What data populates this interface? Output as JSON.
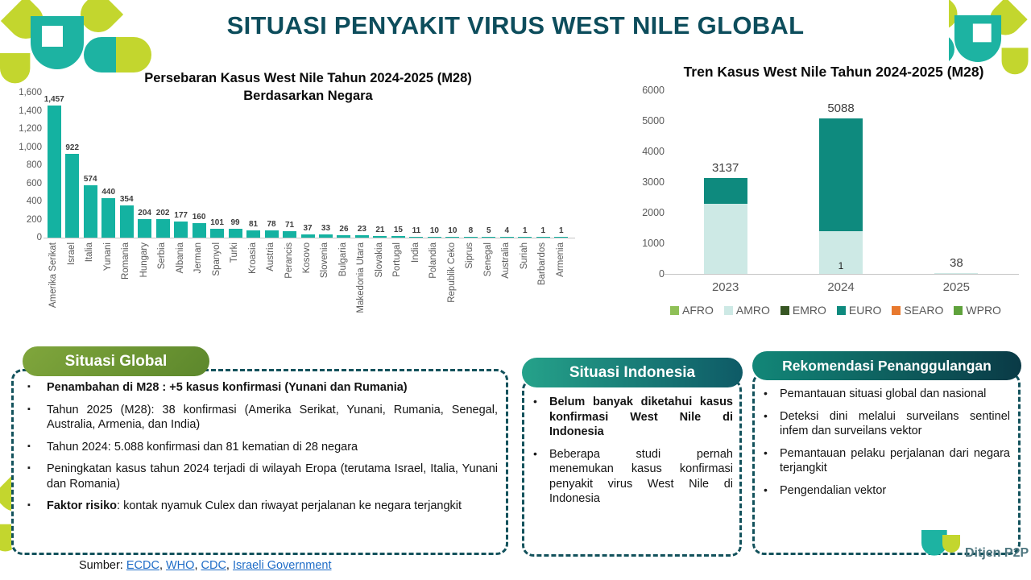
{
  "title": "SITUASI PENYAKIT VIRUS WEST NILE GLOBAL",
  "chart_data": [
    {
      "id": "country_bar",
      "type": "bar",
      "title": "Persebaran Kasus West Nile Tahun 2024-2025 (M28) Berdasarkan Negara",
      "title_lines": [
        "Persebaran Kasus West Nile Tahun 2024-2025 (M28)",
        "Berdasarkan Negara"
      ],
      "categories": [
        "Amerika Serikat",
        "Israel",
        "Italia",
        "Yunani",
        "Romania",
        "Hungary",
        "Serbia",
        "Albania",
        "Jerman",
        "Spanyol",
        "Turki",
        "Kroasia",
        "Austria",
        "Perancis",
        "Kosovo",
        "Slovenia",
        "Bulgaria",
        "Makedonia Utara",
        "Slovakia",
        "Portugal",
        "India",
        "Polandia",
        "Republik Ceko",
        "Siprus",
        "Senegal",
        "Australia",
        "Suriah",
        "Barbardos",
        "Armenia"
      ],
      "values": [
        1457,
        922,
        574,
        440,
        354,
        204,
        202,
        177,
        160,
        101,
        99,
        81,
        78,
        71,
        37,
        33,
        26,
        23,
        21,
        15,
        11,
        10,
        10,
        8,
        5,
        4,
        1,
        1,
        1
      ],
      "value_labels": [
        "1,457",
        "922",
        "574",
        "440",
        "354",
        "204",
        "202",
        "177",
        "160",
        "101",
        "99",
        "81",
        "78",
        "71",
        "37",
        "33",
        "26",
        "23",
        "21",
        "15",
        "11",
        "10",
        "10",
        "8",
        "5",
        "4",
        "1",
        "1",
        "1"
      ],
      "xlabel": "",
      "ylabel": "",
      "ylim": [
        0,
        1600
      ],
      "ytick_step": 200,
      "grid": false,
      "bar_color": "#14b2a1"
    },
    {
      "id": "trend_stacked",
      "type": "bar",
      "stacked": true,
      "title": "Tren Kasus West Nile Tahun 2024-2025 (M28)",
      "categories": [
        "2023",
        "2024",
        "2025"
      ],
      "series": [
        {
          "name": "AFRO",
          "color": "#8fc057",
          "values": [
            0,
            1,
            0
          ]
        },
        {
          "name": "AMRO",
          "color": "#cde9e5",
          "values": [
            2300,
            1400,
            38
          ]
        },
        {
          "name": "EMRO",
          "color": "#375623",
          "values": [
            0,
            0,
            0
          ]
        },
        {
          "name": "EURO",
          "color": "#0e8a7e",
          "values": [
            837,
            3687,
            0
          ]
        },
        {
          "name": "SEARO",
          "color": "#e8792e",
          "values": [
            0,
            0,
            0
          ]
        },
        {
          "name": "WPRO",
          "color": "#5fa23c",
          "values": [
            0,
            0,
            0
          ]
        }
      ],
      "totals_labels": [
        "3137",
        "5088",
        "38"
      ],
      "extra_label": {
        "category": "2024",
        "text": "1"
      },
      "xlabel": "",
      "ylabel": "",
      "ylim": [
        0,
        6000
      ],
      "ytick_step": 1000,
      "grid": false,
      "legend_position": "bottom",
      "legend": [
        "AFRO",
        "AMRO",
        "EMRO",
        "EURO",
        "SEARO",
        "WPRO"
      ]
    }
  ],
  "boxes": {
    "situasi_global": {
      "header": "Situasi Global",
      "items": [
        {
          "bold": "Penambahan di M28 : +5 kasus konfirmasi (Yunani dan Rumania)",
          "rest": ""
        },
        {
          "bold": "",
          "rest": "Tahun 2025 (M28): 38 konfirmasi (Amerika Serikat, Yunani, Rumania, Senegal, Australia, Armenia, dan India)"
        },
        {
          "bold": "",
          "rest": "Tahun 2024: 5.088 konfirmasi dan 81 kematian di 28 negara"
        },
        {
          "bold": "",
          "rest": "Peningkatan kasus tahun 2024 terjadi di wilayah Eropa (terutama Israel, Italia, Yunani dan Romania)"
        },
        {
          "bold": "Faktor risiko",
          "rest": ": kontak nyamuk Culex dan riwayat perjalanan ke negara terjangkit"
        }
      ]
    },
    "situasi_indonesia": {
      "header": "Situasi Indonesia",
      "items": [
        {
          "bold": "Belum banyak diketahui kasus konfirmasi West Nile di Indonesia",
          "rest": ""
        },
        {
          "bold": "",
          "rest": "Beberapa studi pernah menemukan kasus konfirmasi penyakit virus West Nile di Indonesia"
        }
      ]
    },
    "rekomendasi": {
      "header": "Rekomendasi Penanggulangan",
      "items": [
        {
          "bold": "",
          "rest": "Pemantauan situasi global dan nasional"
        },
        {
          "bold": "",
          "rest": "Deteksi dini melalui surveilans sentinel infem dan surveilans vektor"
        },
        {
          "bold": "",
          "rest": "Pemantauan pelaku perjalanan dari negara terjangkit"
        },
        {
          "bold": "",
          "rest": "Pengendalian vektor"
        }
      ]
    }
  },
  "footer": {
    "prefix": "Sumber: ",
    "links": [
      "ECDC",
      "WHO",
      "CDC",
      "Israeli Government"
    ]
  },
  "brand": {
    "name": "Ditjen P2P"
  },
  "colors": {
    "title": "#0d4d5c",
    "bar_teal": "#14b2a1",
    "dash_border": "#13525c",
    "logo_teal": "#1db3a2",
    "logo_yellow": "#c3d62e",
    "link_blue": "#1e6cc7"
  }
}
